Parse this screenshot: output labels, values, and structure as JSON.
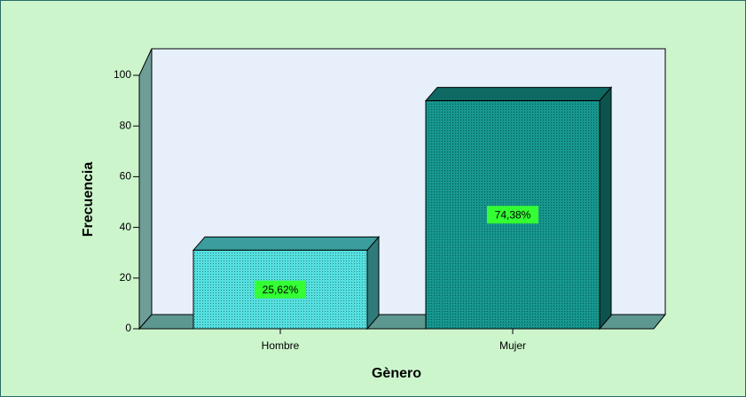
{
  "chart_data": {
    "type": "bar3d",
    "categories": [
      "Hombre",
      "Mujer"
    ],
    "values": [
      31,
      90
    ],
    "value_labels": [
      "25,62%",
      "74,38%"
    ],
    "colors": [
      "#55e0e0",
      "#16968e"
    ],
    "xlabel": "Gènero",
    "ylabel": "Frecuencia",
    "ylim": [
      0,
      100
    ],
    "yticks": [
      0,
      20,
      40,
      60,
      80,
      100
    ]
  }
}
